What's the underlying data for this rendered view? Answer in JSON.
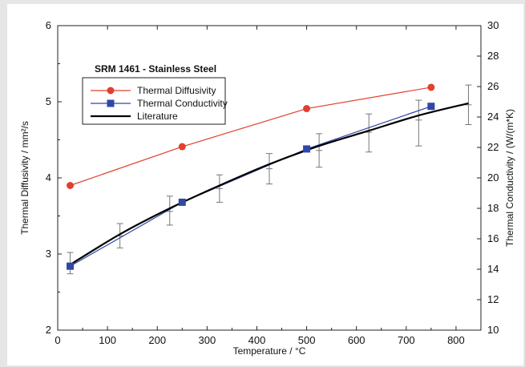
{
  "chart_data": {
    "type": "line",
    "title": "SRM 1461 - Stainless Steel",
    "xlabel": "Temperature / °C",
    "ylabel_left": "Thermal Diffusivity / mm²/s",
    "ylabel_right": "Thermal Conductivity / (W/(m*K)",
    "xlim": [
      0,
      850
    ],
    "ylim_left": [
      2,
      6
    ],
    "ylim_right": [
      10,
      30
    ],
    "x_ticks": [
      "0",
      "100",
      "200",
      "300",
      "400",
      "500",
      "600",
      "700",
      "800"
    ],
    "y_left_ticks": [
      "2",
      "3",
      "4",
      "5",
      "6"
    ],
    "y_right_ticks": [
      "10",
      "12",
      "14",
      "16",
      "18",
      "20",
      "22",
      "24",
      "26",
      "28",
      "30"
    ],
    "grid": false,
    "legend_position": "top-left",
    "series": [
      {
        "name": "Thermal Diffusivity",
        "axis": "left",
        "color": "#e0412f",
        "marker": "circle",
        "x": [
          25,
          250,
          500,
          750
        ],
        "y": [
          3.9,
          4.41,
          4.91,
          5.19
        ]
      },
      {
        "name": "Thermal Conductivity",
        "axis": "right",
        "color": "#2e47a8",
        "marker": "square",
        "x": [
          25,
          250,
          500,
          750
        ],
        "y": [
          14.2,
          18.4,
          21.9,
          24.7
        ]
      },
      {
        "name": "Literature",
        "axis": "right",
        "color": "#000000",
        "marker": "none",
        "x": [
          25,
          125,
          225,
          325,
          425,
          525,
          625,
          725,
          825
        ],
        "y": [
          14.3,
          16.3,
          18.0,
          19.5,
          20.9,
          22.1,
          23.1,
          24.1,
          24.9
        ],
        "error_bars": {
          "x": [
            25,
            125,
            225,
            325,
            425,
            525,
            625,
            725,
            825
          ],
          "center": [
            14.4,
            16.2,
            17.8,
            19.3,
            20.6,
            21.8,
            23.0,
            23.8,
            24.8
          ],
          "low": [
            13.7,
            15.4,
            16.9,
            18.4,
            19.6,
            20.7,
            21.7,
            22.1,
            23.5
          ],
          "high": [
            15.1,
            17.0,
            18.8,
            20.2,
            21.6,
            22.9,
            24.2,
            25.1,
            26.1
          ]
        }
      }
    ]
  }
}
